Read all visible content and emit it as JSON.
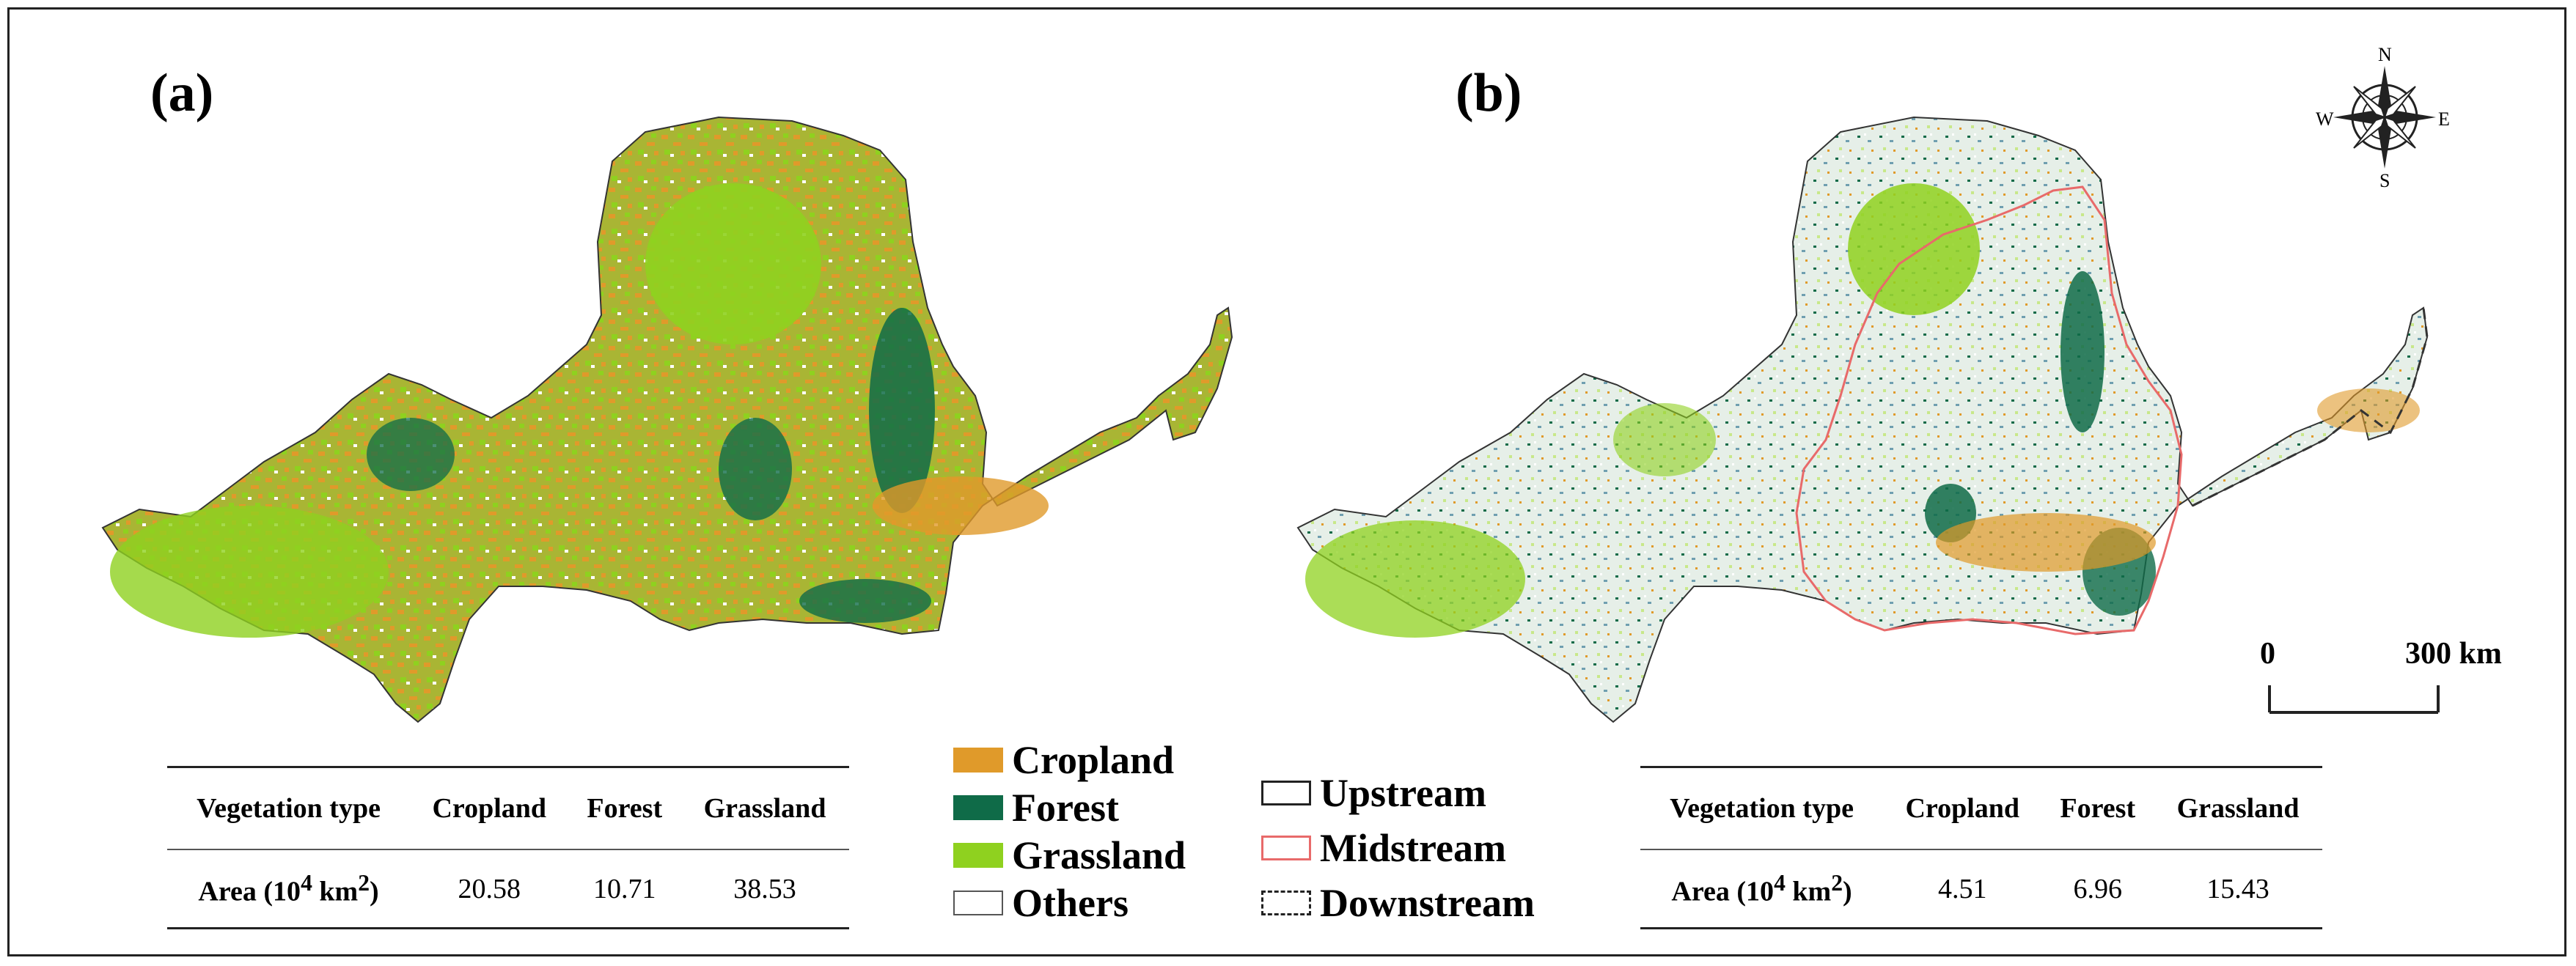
{
  "panels": [
    {
      "label": "(a)"
    },
    {
      "label": "(b)"
    }
  ],
  "table_a": {
    "headers": [
      "Vegetation type",
      "Cropland",
      "Forest",
      "Grassland"
    ],
    "row_label": "Area (10",
    "row_label_sup_num": "4",
    "row_label_mid": " km",
    "row_label_sup_exp": "2",
    "row_label_end": ")",
    "values": [
      "20.58",
      "10.71",
      "38.53"
    ]
  },
  "table_b": {
    "headers": [
      "Vegetation type",
      "Cropland",
      "Forest",
      "Grassland"
    ],
    "row_label": "Area (10",
    "row_label_sup_num": "4",
    "row_label_mid": " km",
    "row_label_sup_exp": "2",
    "row_label_end": ")",
    "values": [
      "4.51",
      "6.96",
      "15.43"
    ]
  },
  "legend_landcover": [
    {
      "label": "Cropland",
      "color": "#e09a2a"
    },
    {
      "label": "Forest",
      "color": "#0f6b48"
    },
    {
      "label": "Grassland",
      "color": "#8fd11f"
    },
    {
      "label": "Others",
      "color": "#ffffff"
    }
  ],
  "legend_regions": [
    {
      "label": "Upstream",
      "color": "#222222",
      "style": "solid"
    },
    {
      "label": "Midstream",
      "color": "#e86a6a",
      "style": "solid"
    },
    {
      "label": "Downstream",
      "color": "#222222",
      "style": "dashed"
    }
  ],
  "scale_bar": {
    "start": "0",
    "end": "300 km"
  },
  "compass": {
    "n": "N",
    "s": "S",
    "e": "E",
    "w": "W"
  },
  "colors": {
    "cropland": "#e09a2a",
    "forest": "#0f6b48",
    "grassland": "#8fd11f",
    "midstream_boundary": "#e86a6a"
  }
}
